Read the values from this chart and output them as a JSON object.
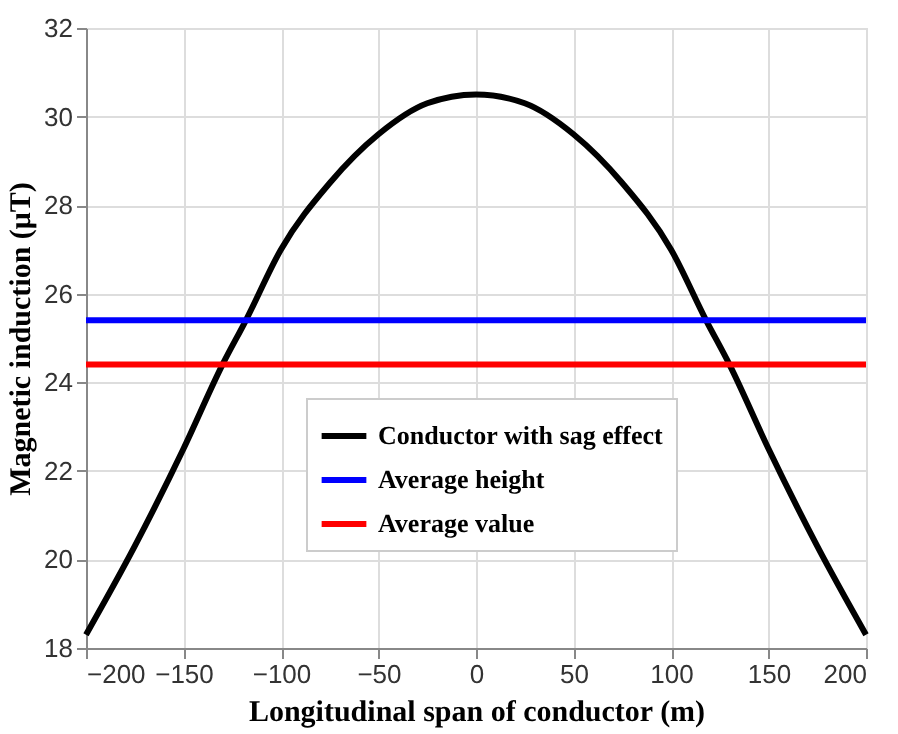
{
  "chart_data": {
    "type": "line",
    "xlabel": "Longitudinal span of conductor (m)",
    "ylabel": "Magnetic induction (μT)",
    "xlim": [
      -200,
      200
    ],
    "xticks": [
      -200,
      -150,
      -100,
      -50,
      0,
      50,
      100,
      150,
      200
    ],
    "ylim": [
      18,
      32
    ],
    "yticks": [
      18,
      20,
      22,
      24,
      26,
      28,
      30,
      32
    ],
    "grid": true,
    "legend": "center",
    "line_style": "solid",
    "marker": "none",
    "series": [
      {
        "name": "Conductor with sag effect",
        "color": "#000000",
        "x": [
          -200,
          -175,
          -150,
          -130,
          -118,
          -100,
          -75,
          -50,
          -25,
          0,
          25,
          50,
          75,
          100,
          118,
          130,
          150,
          175,
          200
        ],
        "values": [
          18.3,
          20.3,
          22.5,
          24.4,
          25.4,
          27.0,
          28.5,
          29.6,
          30.3,
          30.5,
          30.3,
          29.6,
          28.5,
          27.0,
          25.4,
          24.4,
          22.5,
          20.3,
          18.3
        ]
      },
      {
        "name": "Average height",
        "color": "#0000ff",
        "x": [
          -200,
          200
        ],
        "values": [
          25.4,
          25.4
        ]
      },
      {
        "name": "Average value",
        "color": "#ff0000",
        "x": [
          -200,
          200
        ],
        "values": [
          24.4,
          24.4
        ]
      }
    ]
  }
}
